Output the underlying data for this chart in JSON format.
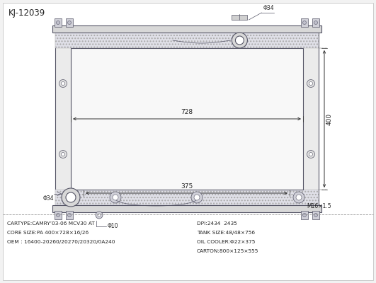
{
  "bg_color": "#f2f2f2",
  "drawing_bg": "#ffffff",
  "line_color": "#555566",
  "title": "KJ-12039",
  "info_lines_left": [
    "CARTYPE:CAMRY’03-06 MCV30 AT",
    "CORE SIZE:PA 400×728×16/26",
    "OEM : 16400-20260/20270/20320/0A240"
  ],
  "info_lines_right": [
    "DPI:2434  2435",
    "TANK SIZE:48/48×756",
    "OIL COOLER:Φ22×375",
    "CARTON:800×125×555"
  ],
  "dim_728": "728",
  "dim_400": "400",
  "dim_375": "375",
  "dim_34_top": "Φ34",
  "dim_34_bot": "Φ34",
  "dim_10": "Φ10",
  "dim_m16": "M16×1.5"
}
